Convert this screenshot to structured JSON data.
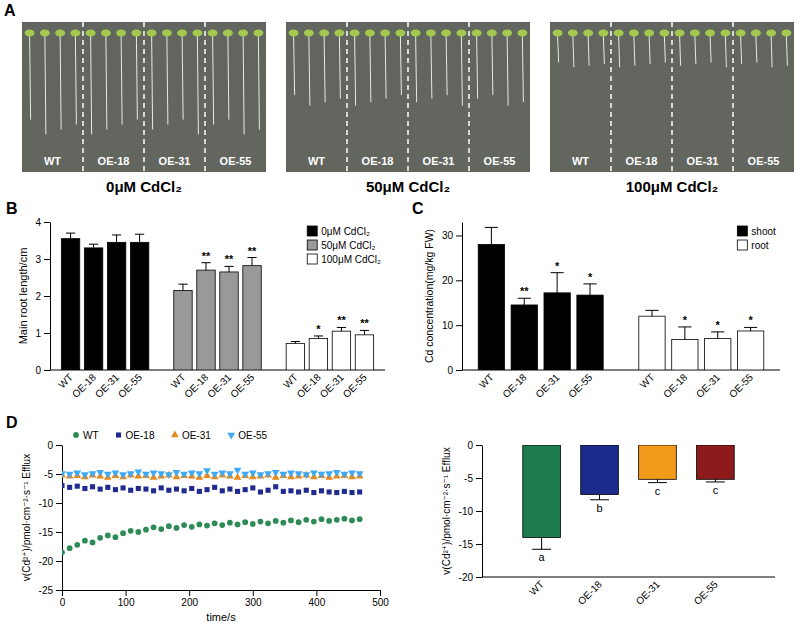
{
  "panel_a": {
    "panel": "A",
    "photos": [
      {
        "caption": "0μM CdCl₂",
        "labels": [
          "WT",
          "OE-18",
          "OE-31",
          "OE-55"
        ]
      },
      {
        "caption": "50μM CdCl₂",
        "labels": [
          "WT",
          "OE-18",
          "OE-31",
          "OE-55"
        ]
      },
      {
        "caption": "100μM CdCl₂",
        "labels": [
          "WT",
          "OE-18",
          "OE-31",
          "OE-55"
        ]
      }
    ]
  },
  "chart_data": [
    {
      "type": "bar",
      "panel": "B",
      "y_label": "Main root length/cm",
      "categories": [
        "WT",
        "OE-18",
        "OE-31",
        "OE-55"
      ],
      "series": [
        {
          "name": "0μM CdCl₂",
          "color": "#000000",
          "values": [
            3.55,
            3.3,
            3.45,
            3.45
          ],
          "errors": [
            0.15,
            0.1,
            0.2,
            0.22
          ]
        },
        {
          "name": "50μM CdCl₂",
          "color": "#999999",
          "values": [
            2.15,
            2.7,
            2.65,
            2.82
          ],
          "errors": [
            0.17,
            0.2,
            0.15,
            0.22
          ],
          "significance": [
            null,
            "**",
            "**",
            "**"
          ]
        },
        {
          "name": "100μM CdCl₂",
          "color": "#ffffff",
          "values": [
            0.72,
            0.85,
            1.05,
            0.95
          ],
          "errors": [
            0.05,
            0.07,
            0.1,
            0.12
          ],
          "significance": [
            null,
            "*",
            "**",
            "**"
          ]
        }
      ],
      "ylim": [
        0,
        4
      ],
      "yticks": [
        0,
        1,
        2,
        3,
        4
      ],
      "legend": "top-right"
    },
    {
      "type": "bar",
      "panel": "C",
      "y_label": "Cd concentration(mg/kg FW)",
      "categories": [
        "WT",
        "OE-18",
        "OE-31",
        "OE-55"
      ],
      "series": [
        {
          "name": "shoot",
          "color": "#000000",
          "values": [
            28,
            14.5,
            17.2,
            16.7
          ],
          "errors": [
            3.8,
            1.5,
            4.5,
            2.5
          ],
          "significance": [
            null,
            "**",
            "*",
            "*"
          ]
        },
        {
          "name": "root",
          "color": "#ffffff",
          "values": [
            12,
            6.8,
            7,
            8.7
          ],
          "errors": [
            1.3,
            2.8,
            1.5,
            0.8
          ],
          "significance": [
            null,
            "*",
            "*",
            "*"
          ]
        }
      ],
      "ylim": [
        0,
        33
      ],
      "yticks": [
        0,
        10,
        20,
        30
      ],
      "legend": "top-right"
    },
    {
      "type": "scatter",
      "panel": "D",
      "x_label": "time/s",
      "y_label": "v(Cd²⁺)/pmol·cm⁻²·s⁻¹ Efflux",
      "x": [
        0,
        12,
        24,
        36,
        48,
        60,
        72,
        84,
        96,
        108,
        120,
        132,
        144,
        156,
        168,
        180,
        192,
        204,
        216,
        228,
        240,
        252,
        264,
        276,
        288,
        300,
        312,
        324,
        336,
        348,
        360,
        372,
        384,
        396,
        408,
        420,
        432,
        444,
        456,
        468
      ],
      "series": [
        {
          "name": "WT",
          "color": "#2e8b57",
          "marker": "circle",
          "values": [
            -18.5,
            -17.8,
            -17.2,
            -16.5,
            -16.8,
            -16.0,
            -15.6,
            -15.9,
            -15.2,
            -14.8,
            -15.0,
            -14.6,
            -14.2,
            -14.5,
            -14.0,
            -14.3,
            -13.8,
            -14.1,
            -13.7,
            -13.9,
            -13.5,
            -13.8,
            -13.4,
            -13.7,
            -13.3,
            -13.6,
            -13.2,
            -13.5,
            -13.1,
            -13.4,
            -13.0,
            -13.3,
            -12.9,
            -13.2,
            -12.8,
            -13.1,
            -12.9,
            -12.7,
            -13.0,
            -12.8
          ]
        },
        {
          "name": "OE-18",
          "color": "#1f2b8f",
          "marker": "square",
          "values": [
            -7.0,
            -7.3,
            -7.1,
            -7.5,
            -7.2,
            -7.6,
            -7.3,
            -7.7,
            -7.4,
            -7.8,
            -7.5,
            -7.6,
            -7.9,
            -7.4,
            -7.8,
            -7.6,
            -7.9,
            -7.5,
            -8.0,
            -7.7,
            -7.3,
            -7.9,
            -7.6,
            -8.0,
            -7.7,
            -7.4,
            -8.1,
            -7.8,
            -7.2,
            -8.0,
            -7.9,
            -8.1,
            -7.8,
            -8.2,
            -7.9,
            -8.1,
            -8.2,
            -8.0,
            -8.2,
            -8.1
          ]
        },
        {
          "name": "OE-31",
          "color": "#e8891c",
          "marker": "triangle",
          "values": [
            -5.2,
            -5.4,
            -5.3,
            -5.5,
            -5.2,
            -5.4,
            -5.6,
            -5.3,
            -5.5,
            -5.2,
            -5.4,
            -5.3,
            -5.6,
            -5.4,
            -5.2,
            -5.5,
            -5.3,
            -5.4,
            -5.6,
            -5.3,
            -5.5,
            -5.2,
            -5.4,
            -5.6,
            -5.3,
            -5.5,
            -5.4,
            -5.2,
            -5.6,
            -5.3,
            -5.5,
            -5.4,
            -5.2,
            -5.5,
            -5.3,
            -5.6,
            -5.4,
            -5.3,
            -5.5,
            -5.4
          ]
        },
        {
          "name": "OE-55",
          "color": "#3fa9f5",
          "marker": "triangle-down",
          "values": [
            -4.9,
            -5.0,
            -4.8,
            -5.1,
            -4.9,
            -4.7,
            -5.0,
            -4.8,
            -5.1,
            -4.9,
            -4.6,
            -5.0,
            -4.8,
            -4.9,
            -5.1,
            -4.7,
            -5.0,
            -4.8,
            -4.9,
            -4.4,
            -5.0,
            -4.8,
            -4.9,
            -4.3,
            -5.0,
            -4.8,
            -5.1,
            -4.9,
            -4.7,
            -5.0,
            -4.8,
            -4.9,
            -5.1,
            -4.8,
            -5.0,
            -4.9,
            -4.7,
            -5.0,
            -4.8,
            -4.9
          ]
        }
      ],
      "xlim": [
        0,
        500
      ],
      "xticks": [
        0,
        100,
        200,
        300,
        400,
        500
      ],
      "ylim": [
        -25,
        0
      ],
      "yticks": [
        -25,
        -20,
        -15,
        -10,
        -5,
        0
      ],
      "legend": "top"
    },
    {
      "type": "bar",
      "y_label": "v(Cd²⁺)/pmol·cm⁻²·s⁻¹ Efflux",
      "categories": [
        "WT",
        "OE-18",
        "OE-31",
        "OE-55"
      ],
      "values": [
        -14,
        -7.5,
        -5.2,
        -5.2
      ],
      "errors": [
        1.8,
        0.8,
        0.5,
        0.4
      ],
      "significance": [
        "a",
        "b",
        "c",
        "c"
      ],
      "colors": [
        "#1e7a4f",
        "#1c2a8c",
        "#f39a1c",
        "#8e1b1b"
      ],
      "ylim": [
        -20,
        0
      ],
      "yticks": [
        -20,
        -15,
        -10,
        -5,
        0
      ]
    }
  ]
}
